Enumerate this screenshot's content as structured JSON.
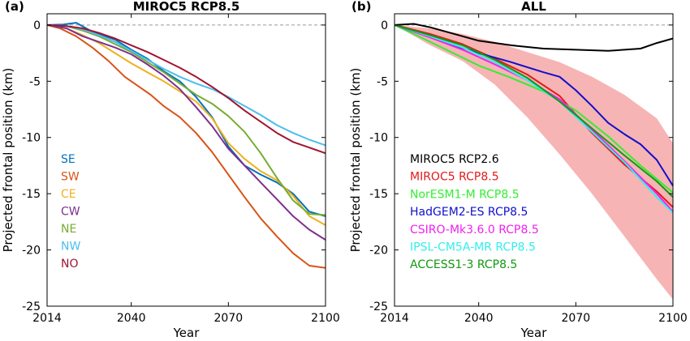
{
  "chart_data": [
    {
      "panel_label": "(a)",
      "title": "MIROC5 RCP8.5",
      "type": "line",
      "xlabel": "Year",
      "ylabel": "Projected frontal position (km)",
      "xlim": [
        2014,
        2100
      ],
      "ylim": [
        -25,
        1
      ],
      "xticks": [
        2014,
        2040,
        2070,
        2100
      ],
      "yticks": [
        0,
        -5,
        -10,
        -15,
        -20,
        -25
      ],
      "reference_line": {
        "y": 0,
        "style": "dashed",
        "color": "#999999"
      },
      "legend_position": "left",
      "series": [
        {
          "name": "SE",
          "color": "#0072bd",
          "x": [
            2014,
            2019,
            2023,
            2028,
            2035,
            2040,
            2045,
            2050,
            2055,
            2060,
            2065,
            2070,
            2075,
            2080,
            2085,
            2090,
            2095,
            2100
          ],
          "y": [
            0,
            0.05,
            0.2,
            -0.6,
            -1.3,
            -2.2,
            -3.0,
            -4.1,
            -5.0,
            -6.4,
            -8.2,
            -10.8,
            -12.5,
            -13.3,
            -14.0,
            -15.0,
            -16.6,
            -17.0
          ]
        },
        {
          "name": "SW",
          "color": "#d95319",
          "x": [
            2014,
            2018,
            2023,
            2028,
            2033,
            2038,
            2042,
            2046,
            2050,
            2055,
            2060,
            2065,
            2070,
            2075,
            2080,
            2085,
            2090,
            2095,
            2100
          ],
          "y": [
            0,
            -0.3,
            -1.0,
            -2.0,
            -3.2,
            -4.6,
            -5.4,
            -6.2,
            -7.2,
            -8.2,
            -9.6,
            -11.3,
            -13.3,
            -15.3,
            -17.2,
            -18.8,
            -20.3,
            -21.4,
            -21.6
          ]
        },
        {
          "name": "CE",
          "color": "#edb120",
          "x": [
            2014,
            2020,
            2025,
            2030,
            2035,
            2040,
            2045,
            2050,
            2055,
            2060,
            2065,
            2070,
            2075,
            2080,
            2085,
            2090,
            2095,
            2100
          ],
          "y": [
            0,
            -0.3,
            -0.9,
            -1.6,
            -2.5,
            -3.4,
            -4.2,
            -5.0,
            -5.9,
            -6.8,
            -8.3,
            -10.5,
            -11.9,
            -13.0,
            -13.8,
            -15.2,
            -17.0,
            -17.8
          ]
        },
        {
          "name": "CW",
          "color": "#7e2f8e",
          "x": [
            2014,
            2020,
            2025,
            2030,
            2035,
            2040,
            2045,
            2050,
            2055,
            2060,
            2065,
            2070,
            2075,
            2080,
            2085,
            2090,
            2095,
            2100
          ],
          "y": [
            0,
            -0.3,
            -1.0,
            -1.5,
            -2.0,
            -2.6,
            -3.5,
            -4.5,
            -5.7,
            -7.3,
            -9.0,
            -11.0,
            -12.5,
            -14.0,
            -15.5,
            -17.0,
            -18.2,
            -19.1
          ]
        },
        {
          "name": "NE",
          "color": "#77ac30",
          "x": [
            2014,
            2020,
            2025,
            2030,
            2035,
            2040,
            2045,
            2050,
            2055,
            2060,
            2065,
            2070,
            2075,
            2080,
            2085,
            2090,
            2095,
            2100
          ],
          "y": [
            0,
            -0.1,
            -0.5,
            -1.0,
            -1.7,
            -2.4,
            -3.3,
            -4.2,
            -5.2,
            -6.2,
            -7.0,
            -8.1,
            -9.5,
            -11.4,
            -13.6,
            -15.6,
            -16.8,
            -16.9
          ]
        },
        {
          "name": "NW",
          "color": "#4dbeee",
          "x": [
            2014,
            2020,
            2025,
            2030,
            2035,
            2040,
            2045,
            2050,
            2055,
            2060,
            2065,
            2070,
            2075,
            2080,
            2085,
            2090,
            2095,
            2100
          ],
          "y": [
            0,
            -0.1,
            -0.4,
            -0.9,
            -1.5,
            -2.3,
            -3.1,
            -3.9,
            -4.6,
            -5.2,
            -5.7,
            -6.4,
            -7.2,
            -8.0,
            -8.9,
            -9.6,
            -10.2,
            -10.7
          ]
        },
        {
          "name": "NO",
          "color": "#a2142f",
          "x": [
            2014,
            2020,
            2025,
            2030,
            2035,
            2040,
            2045,
            2050,
            2055,
            2060,
            2065,
            2070,
            2075,
            2080,
            2085,
            2090,
            2095,
            2100
          ],
          "y": [
            0,
            -0.1,
            -0.3,
            -0.7,
            -1.2,
            -1.8,
            -2.4,
            -3.1,
            -3.8,
            -4.6,
            -5.5,
            -6.5,
            -7.6,
            -8.6,
            -9.6,
            -10.4,
            -10.9,
            -11.4
          ]
        }
      ]
    },
    {
      "panel_label": "(b)",
      "title": "ALL",
      "type": "line",
      "xlabel": "Year",
      "ylabel": "Projected frontal position (km)",
      "xlim": [
        2014,
        2100
      ],
      "ylim": [
        -25,
        1
      ],
      "xticks": [
        2014,
        2040,
        2070,
        2100
      ],
      "yticks": [
        0,
        -5,
        -10,
        -15,
        -20,
        -25
      ],
      "reference_line": {
        "y": 0,
        "style": "dashed",
        "color": "#999999"
      },
      "legend_position": "left",
      "band": {
        "color": "#f7b4b4",
        "x": [
          2014,
          2025,
          2035,
          2045,
          2055,
          2065,
          2075,
          2085,
          2095,
          2100
        ],
        "upper": [
          0,
          -0.3,
          -0.8,
          -1.5,
          -2.4,
          -3.3,
          -4.6,
          -6.2,
          -8.3,
          -10.5
        ],
        "lower": [
          0,
          -1.8,
          -3.2,
          -5.3,
          -8.2,
          -11.5,
          -15.0,
          -18.8,
          -22.6,
          -24.4
        ]
      },
      "series": [
        {
          "name": "MIROC5 RCP2.6",
          "color": "#000000",
          "x": [
            2014,
            2020,
            2025,
            2030,
            2040,
            2050,
            2060,
            2070,
            2080,
            2090,
            2095,
            2100
          ],
          "y": [
            0,
            0.1,
            -0.2,
            -0.6,
            -1.4,
            -1.8,
            -2.1,
            -2.2,
            -2.3,
            -2.1,
            -1.6,
            -1.2
          ]
        },
        {
          "name": "MIROC5 RCP8.5",
          "color": "#e31a1c",
          "x": [
            2014,
            2025,
            2035,
            2045,
            2055,
            2065,
            2075,
            2085,
            2095,
            2100
          ],
          "y": [
            0,
            -0.8,
            -1.7,
            -3.0,
            -4.4,
            -6.3,
            -9.6,
            -12.4,
            -14.8,
            -16.2
          ]
        },
        {
          "name": "NorESM1-M RCP8.5",
          "color": "#33ee33",
          "x": [
            2014,
            2020,
            2030,
            2040,
            2050,
            2060,
            2070,
            2080,
            2090,
            2100
          ],
          "y": [
            0,
            -0.8,
            -2.2,
            -3.6,
            -4.7,
            -5.9,
            -7.6,
            -9.9,
            -12.5,
            -14.9
          ]
        },
        {
          "name": "HadGEM2-ES RCP8.5",
          "color": "#1010cc",
          "x": [
            2014,
            2020,
            2030,
            2040,
            2050,
            2060,
            2065,
            2070,
            2075,
            2080,
            2085,
            2090,
            2095,
            2100
          ],
          "y": [
            0,
            -0.6,
            -1.6,
            -2.5,
            -3.3,
            -4.2,
            -4.6,
            -5.8,
            -7.2,
            -8.7,
            -9.7,
            -10.6,
            -12.0,
            -14.3
          ]
        },
        {
          "name": "CSIRO-Mk3.6.0 RCP8.5",
          "color": "#ee22ee",
          "x": [
            2014,
            2025,
            2035,
            2045,
            2055,
            2065,
            2075,
            2085,
            2095,
            2100
          ],
          "y": [
            0,
            -1.1,
            -2.2,
            -3.5,
            -4.9,
            -6.6,
            -9.3,
            -12.1,
            -15.0,
            -16.6
          ]
        },
        {
          "name": "IPSL-CM5A-MR RCP8.5",
          "color": "#33eeee",
          "x": [
            2014,
            2025,
            2035,
            2045,
            2055,
            2065,
            2075,
            2085,
            2095,
            2100
          ],
          "y": [
            0,
            -1.0,
            -2.0,
            -3.3,
            -4.9,
            -6.8,
            -9.5,
            -12.2,
            -15.3,
            -16.7
          ]
        },
        {
          "name": "ACCESS1-3 RCP8.5",
          "color": "#119911",
          "x": [
            2014,
            2025,
            2035,
            2045,
            2055,
            2065,
            2075,
            2085,
            2095,
            2100
          ],
          "y": [
            0,
            -0.9,
            -1.8,
            -3.1,
            -4.7,
            -6.8,
            -9.2,
            -11.6,
            -13.9,
            -15.3
          ]
        }
      ]
    }
  ]
}
